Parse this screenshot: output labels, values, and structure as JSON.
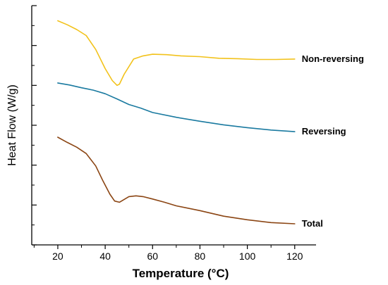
{
  "chart_data": {
    "type": "line",
    "xlabel": "Temperature (°C)",
    "ylabel": "Heat Flow (W/g)",
    "xlim": [
      9,
      129
    ],
    "ylim": [
      0,
      6
    ],
    "x_ticks": [
      20,
      40,
      60,
      80,
      100,
      120
    ],
    "y_ticks_labeled": false,
    "grid": false,
    "series": [
      {
        "name": "Non-reversing",
        "color": "#f2c21b",
        "x": [
          20,
          24,
          28,
          32,
          36,
          40,
          43,
          45,
          46,
          48,
          52,
          56,
          60,
          66,
          72,
          80,
          88,
          96,
          104,
          112,
          120
        ],
        "y": [
          5.62,
          5.52,
          5.4,
          5.25,
          4.9,
          4.42,
          4.12,
          4.0,
          4.03,
          4.28,
          4.66,
          4.74,
          4.78,
          4.77,
          4.74,
          4.72,
          4.68,
          4.67,
          4.65,
          4.65,
          4.66
        ]
      },
      {
        "name": "Reversing",
        "color": "#1a7aa0",
        "x": [
          20,
          25,
          30,
          35,
          40,
          45,
          50,
          55,
          60,
          70,
          80,
          90,
          100,
          110,
          120
        ],
        "y": [
          4.06,
          4.01,
          3.94,
          3.88,
          3.79,
          3.66,
          3.52,
          3.43,
          3.32,
          3.2,
          3.1,
          3.01,
          2.94,
          2.88,
          2.84
        ]
      },
      {
        "name": "Total",
        "color": "#8b4513",
        "x": [
          20,
          24,
          28,
          32,
          36,
          39,
          42,
          44,
          46,
          48,
          50,
          53,
          56,
          60,
          65,
          70,
          80,
          90,
          100,
          110,
          120
        ],
        "y": [
          2.7,
          2.57,
          2.45,
          2.29,
          1.98,
          1.61,
          1.27,
          1.1,
          1.07,
          1.14,
          1.21,
          1.23,
          1.21,
          1.15,
          1.07,
          0.98,
          0.86,
          0.72,
          0.63,
          0.56,
          0.53
        ]
      }
    ]
  }
}
